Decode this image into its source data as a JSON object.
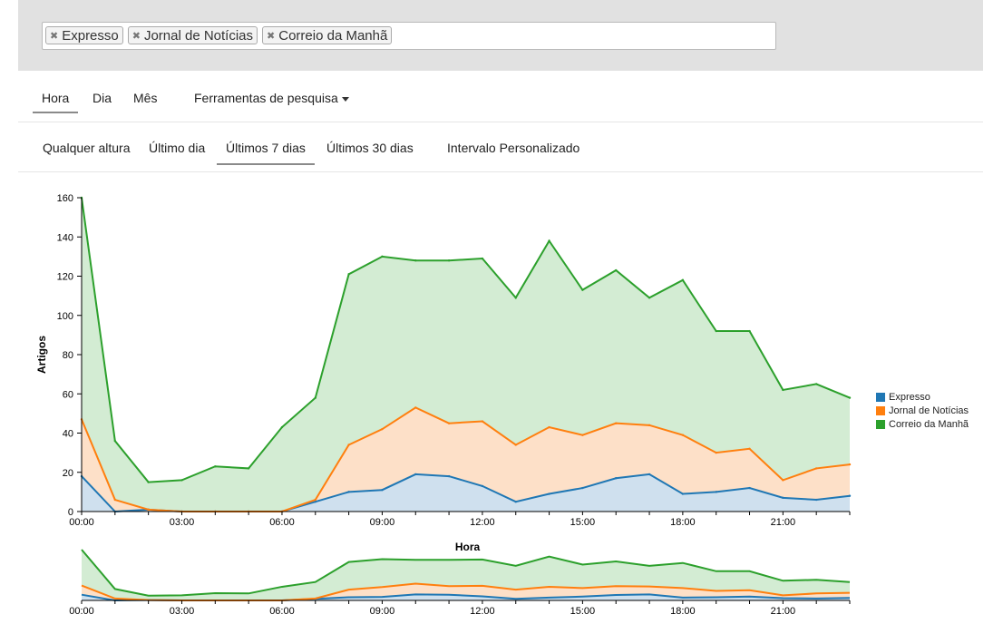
{
  "search": {
    "tags": [
      {
        "label": "Expresso"
      },
      {
        "label": "Jornal de Notícias"
      },
      {
        "label": "Correio da Manhã"
      }
    ]
  },
  "nav": {
    "granularity": [
      {
        "label": "Hora",
        "active": true
      },
      {
        "label": "Dia",
        "active": false
      },
      {
        "label": "Mês",
        "active": false
      }
    ],
    "tools_label": "Ferramentas de pesquisa"
  },
  "time_filters": [
    {
      "label": "Qualquer altura",
      "active": false
    },
    {
      "label": "Último dia",
      "active": false
    },
    {
      "label": "Últimos 7 dias",
      "active": true
    },
    {
      "label": "Últimos 30 dias",
      "active": false
    },
    {
      "label": "Intervalo Personalizado",
      "active": false
    }
  ],
  "chart_data": {
    "type": "area",
    "stacked": true,
    "xlabel": "Hora",
    "ylabel": "Artigos",
    "ylim": [
      0,
      160
    ],
    "yticks": [
      0,
      20,
      40,
      60,
      80,
      100,
      120,
      140,
      160
    ],
    "xtick_labels": [
      "00:00",
      "03:00",
      "06:00",
      "09:00",
      "12:00",
      "15:00",
      "18:00",
      "21:00"
    ],
    "x": [
      "00:00",
      "01:00",
      "02:00",
      "03:00",
      "04:00",
      "05:00",
      "06:00",
      "07:00",
      "08:00",
      "09:00",
      "10:00",
      "11:00",
      "12:00",
      "13:00",
      "14:00",
      "15:00",
      "16:00",
      "17:00",
      "18:00",
      "19:00",
      "20:00",
      "21:00",
      "22:00",
      "23:00"
    ],
    "legend_position": "right",
    "series": [
      {
        "name": "Expresso",
        "color": "#1f77b4",
        "fill": "#cfe0ee",
        "values": [
          18,
          0,
          1,
          0,
          0,
          0,
          0,
          5,
          10,
          11,
          19,
          18,
          13,
          5,
          9,
          12,
          17,
          19,
          9,
          10,
          12,
          7,
          6,
          8
        ]
      },
      {
        "name": "Jornal de Notícias",
        "color": "#ff7f0e",
        "fill": "#fde0c8",
        "values": [
          29,
          6,
          0,
          0,
          0,
          0,
          0,
          1,
          24,
          31,
          34,
          27,
          33,
          29,
          34,
          27,
          28,
          25,
          30,
          20,
          20,
          9,
          16,
          16
        ]
      },
      {
        "name": "Correio da Manhã",
        "color": "#2ca02c",
        "fill": "#d3ecd3",
        "values": [
          113,
          30,
          14,
          16,
          23,
          22,
          43,
          52,
          87,
          88,
          75,
          83,
          83,
          75,
          95,
          74,
          78,
          65,
          79,
          62,
          60,
          46,
          43,
          34
        ]
      }
    ]
  }
}
